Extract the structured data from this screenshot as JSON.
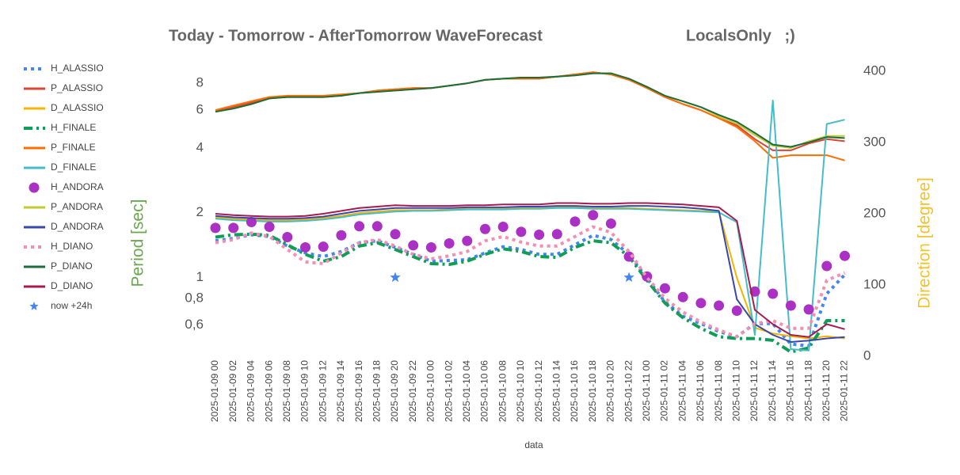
{
  "chart_data": {
    "type": "line",
    "title": "Today - Tomorrow - AfterTomorrow WaveForecast",
    "subtitle": "LocalsOnly   ;)",
    "x_label": "data",
    "y_label": "Period [sec]",
    "y2_label": "Direction [degree]",
    "log_y": true,
    "ylim": [
      0.43,
      9.1
    ],
    "yticks": [
      {
        "value": 0.6,
        "label": "0,6"
      },
      {
        "value": 0.8,
        "label": "0,8"
      },
      1,
      2,
      4,
      6,
      8
    ],
    "y2lim": [
      0,
      400
    ],
    "y2ticks": [
      0,
      100,
      200,
      300,
      400
    ],
    "categories": [
      "2025-01-09 00",
      "2025-01-09 02",
      "2025-01-09 04",
      "2025-01-09 06",
      "2025-01-09 08",
      "2025-01-09 10",
      "2025-01-09 12",
      "2025-01-09 14",
      "2025-01-09 16",
      "2025-01-09 18",
      "2025-01-09 20",
      "2025-01-09 22",
      "2025-01-10 00",
      "2025-01-10 02",
      "2025-01-10 04",
      "2025-01-10 06",
      "2025-01-10 08",
      "2025-01-10 10",
      "2025-01-10 12",
      "2025-01-10 14",
      "2025-01-10 16",
      "2025-01-10 18",
      "2025-01-10 20",
      "2025-01-10 22",
      "2025-01-11 00",
      "2025-01-11 02",
      "2025-01-11 04",
      "2025-01-11 06",
      "2025-01-11 08",
      "2025-01-11 10",
      "2025-01-11 12",
      "2025-01-11 14",
      "2025-01-11 16",
      "2025-01-11 18",
      "2025-01-11 20",
      "2025-01-11 22"
    ],
    "series": [
      {
        "name": "H_ALASSIO",
        "color": "#4285f4",
        "style": "dotted",
        "axis": "y",
        "values": [
          1.48,
          1.52,
          1.58,
          1.55,
          1.4,
          1.3,
          1.25,
          1.32,
          1.45,
          1.48,
          1.38,
          1.28,
          1.19,
          1.2,
          1.21,
          1.3,
          1.39,
          1.35,
          1.28,
          1.28,
          1.42,
          1.57,
          1.5,
          1.28,
          0.99,
          0.77,
          0.66,
          0.61,
          0.56,
          0.53,
          0.61,
          0.61,
          0.49,
          0.48,
          0.84,
          1.03
        ]
      },
      {
        "name": "P_ALASSIO",
        "color": "#db4437",
        "style": "solid",
        "axis": "y",
        "values": [
          5.9,
          6.2,
          6.5,
          6.9,
          6.9,
          6.9,
          6.9,
          7.0,
          7.2,
          7.4,
          7.5,
          7.6,
          7.6,
          7.8,
          8.0,
          8.3,
          8.4,
          8.4,
          8.4,
          8.6,
          8.8,
          9.0,
          8.8,
          8.3,
          7.6,
          6.9,
          6.4,
          6.0,
          5.5,
          5.1,
          4.4,
          3.9,
          3.9,
          4.2,
          4.4,
          4.3
        ]
      },
      {
        "name": "D_ALASSIO",
        "color": "#f4b400",
        "style": "solid",
        "axis": "y2",
        "values": [
          195,
          193,
          192,
          191,
          191,
          192,
          194,
          197,
          201,
          203,
          205,
          205,
          205,
          206,
          207,
          207,
          207,
          208,
          208,
          209,
          209,
          208,
          208,
          208,
          207,
          206,
          205,
          204,
          203,
          110,
          40,
          32,
          28,
          25,
          28,
          25
        ]
      },
      {
        "name": "H_FINALE",
        "color": "#0f9d58",
        "style": "dashdot",
        "axis": "y",
        "values": [
          1.54,
          1.58,
          1.59,
          1.57,
          1.42,
          1.28,
          1.19,
          1.25,
          1.4,
          1.45,
          1.35,
          1.25,
          1.16,
          1.15,
          1.19,
          1.28,
          1.36,
          1.32,
          1.25,
          1.24,
          1.38,
          1.48,
          1.45,
          1.25,
          0.97,
          0.76,
          0.65,
          0.58,
          0.53,
          0.52,
          0.52,
          0.51,
          0.45,
          0.47,
          0.63,
          0.63
        ]
      },
      {
        "name": "P_FINALE",
        "color": "#ff6d01",
        "style": "solid",
        "axis": "y",
        "values": [
          6.0,
          6.3,
          6.6,
          6.9,
          7.0,
          7.0,
          7.0,
          7.1,
          7.2,
          7.4,
          7.5,
          7.6,
          7.6,
          7.8,
          8.0,
          8.3,
          8.4,
          8.4,
          8.4,
          8.6,
          8.8,
          9.0,
          8.8,
          8.3,
          7.6,
          6.9,
          6.4,
          6.0,
          5.5,
          5.0,
          4.3,
          3.6,
          3.7,
          3.7,
          3.7,
          3.5
        ]
      },
      {
        "name": "D_FINALE",
        "color": "#46bdc6",
        "style": "solid",
        "axis": "y2",
        "values": [
          193,
          191,
          190,
          189,
          189,
          190,
          192,
          195,
          199,
          201,
          203,
          204,
          204,
          205,
          206,
          206,
          206,
          207,
          207,
          208,
          208,
          207,
          207,
          207,
          206,
          205,
          204,
          203,
          202,
          188,
          30,
          359,
          10,
          8,
          326,
          332
        ]
      },
      {
        "name": "H_ANDORA",
        "color": "#ab30c4",
        "style": "dots",
        "axis": "y",
        "values": [
          1.7,
          1.7,
          1.81,
          1.72,
          1.54,
          1.38,
          1.39,
          1.57,
          1.73,
          1.73,
          1.59,
          1.41,
          1.38,
          1.44,
          1.48,
          1.68,
          1.72,
          1.63,
          1.58,
          1.59,
          1.82,
          1.95,
          1.78,
          1.25,
          1.01,
          0.89,
          0.81,
          0.76,
          0.74,
          0.7,
          0.86,
          0.84,
          0.74,
          0.71,
          1.13,
          1.26
        ]
      },
      {
        "name": "P_ANDORA",
        "color": "#c0ca33",
        "style": "solid",
        "axis": "y",
        "values": [
          5.9,
          6.1,
          6.4,
          6.8,
          6.9,
          6.9,
          6.9,
          7.0,
          7.2,
          7.3,
          7.4,
          7.5,
          7.6,
          7.8,
          8.0,
          8.3,
          8.4,
          8.5,
          8.5,
          8.6,
          8.7,
          8.9,
          8.9,
          8.4,
          7.7,
          7.0,
          6.6,
          6.2,
          5.6,
          5.2,
          4.6,
          4.1,
          4.0,
          4.3,
          4.55,
          4.55
        ]
      },
      {
        "name": "D_ANDORA",
        "color": "#3949ab",
        "style": "solid",
        "axis": "y2",
        "values": [
          197,
          195,
          194,
          193,
          193,
          194,
          196,
          200,
          204,
          206,
          208,
          208,
          208,
          208,
          209,
          209,
          209,
          210,
          210,
          211,
          211,
          210,
          210,
          211,
          211,
          210,
          209,
          207,
          204,
          80,
          45,
          30,
          20,
          22,
          25,
          27
        ]
      },
      {
        "name": "H_DIANO",
        "color": "#f48fb1",
        "style": "dotted",
        "axis": "y",
        "values": [
          1.45,
          1.5,
          1.61,
          1.55,
          1.35,
          1.18,
          1.16,
          1.3,
          1.45,
          1.5,
          1.4,
          1.28,
          1.22,
          1.26,
          1.32,
          1.48,
          1.55,
          1.46,
          1.4,
          1.4,
          1.55,
          1.72,
          1.62,
          1.32,
          1.0,
          0.8,
          0.69,
          0.62,
          0.57,
          0.53,
          0.61,
          0.63,
          0.58,
          0.58,
          0.97,
          1.05
        ]
      },
      {
        "name": "P_DIANO",
        "color": "#1e6b3d",
        "style": "solid",
        "axis": "y",
        "values": [
          5.9,
          6.1,
          6.4,
          6.8,
          6.9,
          6.9,
          6.9,
          7.0,
          7.2,
          7.3,
          7.4,
          7.5,
          7.6,
          7.8,
          8.0,
          8.3,
          8.4,
          8.5,
          8.5,
          8.6,
          8.7,
          8.9,
          8.9,
          8.4,
          7.7,
          7.0,
          6.6,
          6.2,
          5.7,
          5.3,
          4.7,
          4.15,
          4.05,
          4.25,
          4.5,
          4.45
        ]
      },
      {
        "name": "D_DIANO",
        "color": "#a51d4f",
        "style": "solid",
        "axis": "y2",
        "values": [
          200,
          198,
          197,
          196,
          196,
          197,
          200,
          204,
          208,
          210,
          212,
          211,
          211,
          211,
          212,
          212,
          213,
          213,
          213,
          215,
          215,
          214,
          214,
          215,
          215,
          214,
          213,
          211,
          209,
          190,
          65,
          45,
          30,
          27,
          45,
          38
        ]
      },
      {
        "name": "now +24h",
        "color": "#4285f4",
        "style": "stars",
        "axis": "y",
        "values": [
          null,
          null,
          null,
          null,
          null,
          null,
          null,
          null,
          null,
          null,
          1,
          null,
          null,
          null,
          null,
          null,
          null,
          null,
          null,
          null,
          null,
          null,
          null,
          1,
          null,
          null,
          null,
          null,
          null,
          null,
          null,
          null,
          null,
          null,
          null,
          null
        ]
      }
    ]
  }
}
